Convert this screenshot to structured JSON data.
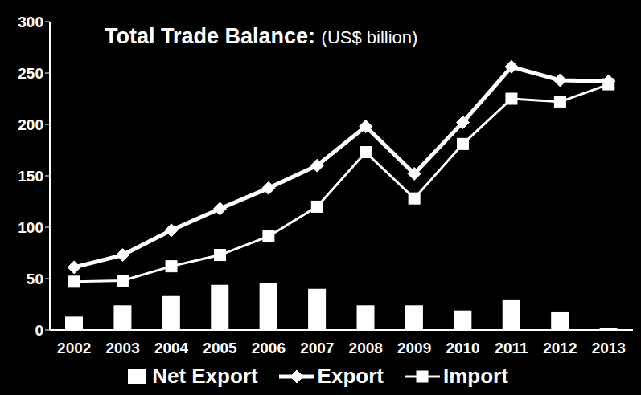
{
  "chart_data": {
    "type": "combo",
    "title": "Total Trade Balance:",
    "subtitle": "(US$ billion)",
    "categories": [
      "2002",
      "2003",
      "2004",
      "2005",
      "2006",
      "2007",
      "2008",
      "2009",
      "2010",
      "2011",
      "2012",
      "2013"
    ],
    "series": [
      {
        "name": "Net Export",
        "type": "bar",
        "color": "#ffffff",
        "values": [
          13,
          24,
          33,
          44,
          46,
          40,
          24,
          24,
          19,
          29,
          18,
          2
        ]
      },
      {
        "name": "Export",
        "type": "line",
        "color": "#ffffff",
        "marker": "diamond",
        "values": [
          61,
          73,
          97,
          118,
          138,
          160,
          198,
          152,
          202,
          256,
          243,
          242
        ]
      },
      {
        "name": "Import",
        "type": "line",
        "color": "#ffffff",
        "marker": "square",
        "values": [
          47,
          48,
          62,
          73,
          91,
          120,
          173,
          128,
          181,
          225,
          222,
          239
        ]
      }
    ],
    "ylim": [
      0,
      300
    ],
    "yticks": [
      0,
      50,
      100,
      150,
      200,
      250,
      300
    ],
    "grid": false,
    "legend": "bottom"
  }
}
